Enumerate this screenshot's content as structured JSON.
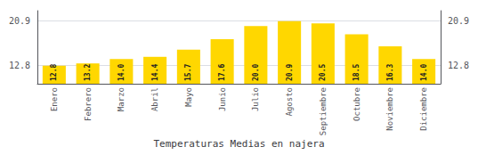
{
  "chart_data": {
    "type": "bar",
    "title": "Temperaturas Medias en najera",
    "categories": [
      "Enero",
      "Febrero",
      "Marzo",
      "Abril",
      "Mayo",
      "Junio",
      "Julio",
      "Agosto",
      "Septiembre",
      "Octubre",
      "Noviembre",
      "Diciembre"
    ],
    "values": [
      12.8,
      13.2,
      14.0,
      14.4,
      15.7,
      17.6,
      20.0,
      20.9,
      20.5,
      18.5,
      16.3,
      14.0
    ],
    "value_labels": [
      "12.8",
      "13.2",
      "14.0",
      "14.4",
      "15.7",
      "17.6",
      "20.0",
      "20.9",
      "20.5",
      "18.5",
      "16.3",
      "14.0"
    ],
    "color": "#FFD700",
    "ylim": [
      9.5,
      22.8
    ],
    "yticks": [
      12.8,
      20.9
    ],
    "y2lim": [
      9.5,
      22.8
    ],
    "y2ticks": [
      12.8,
      20.9
    ],
    "grid": true,
    "data_labels": true
  }
}
